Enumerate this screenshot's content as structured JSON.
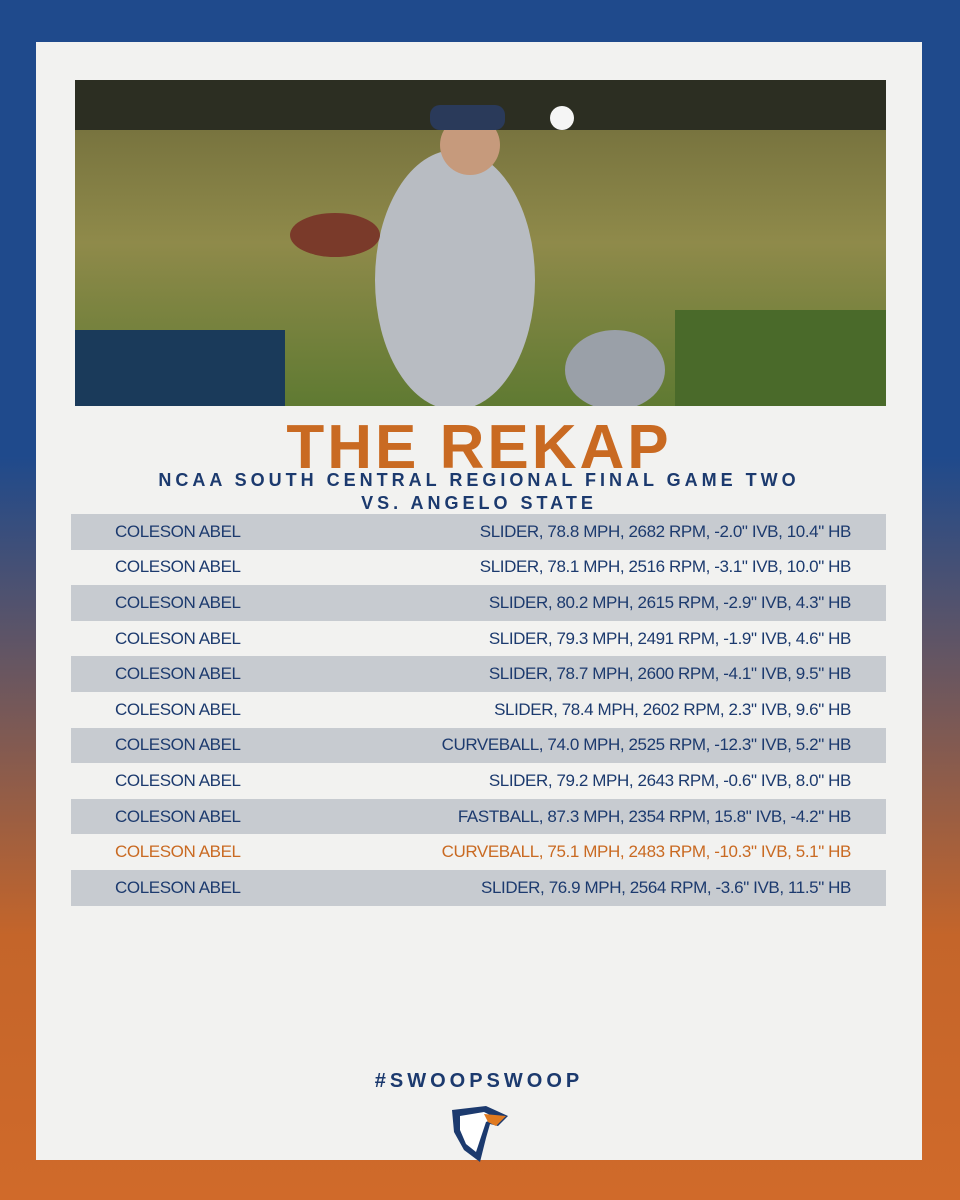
{
  "header": {
    "title": "THE REKAP",
    "subtitle_lines": [
      "NCAA SOUTH CENTRAL REGIONAL FINAL GAME TWO",
      "VS. ANGELO STATE"
    ]
  },
  "table": {
    "highlight_row": 9,
    "rows": [
      [
        "COLESON ABEL",
        "SLIDER, 78.8 MPH, 2682 RPM, -2.0\" IVB, 10.4\" HB"
      ],
      [
        "COLESON ABEL",
        "SLIDER, 78.1 MPH, 2516 RPM, -3.1\" IVB, 10.0\" HB"
      ],
      [
        "COLESON ABEL",
        "SLIDER, 80.2 MPH, 2615 RPM, -2.9\" IVB, 4.3\" HB"
      ],
      [
        "COLESON ABEL",
        "SLIDER, 79.3 MPH, 2491 RPM, -1.9\" IVB, 4.6\" HB"
      ],
      [
        "COLESON ABEL",
        "SLIDER, 78.7 MPH, 2600 RPM, -4.1\" IVB, 9.5\" HB"
      ],
      [
        "COLESON ABEL",
        "SLIDER, 78.4 MPH, 2602 RPM, 2.3\" IVB, 9.6\" HB"
      ],
      [
        "COLESON ABEL",
        "CURVEBALL, 74.0 MPH, 2525 RPM, -12.3\" IVB, 5.2\" HB"
      ],
      [
        "COLESON ABEL",
        "SLIDER, 79.2 MPH, 2643 RPM, -0.6\" IVB, 8.0\" HB"
      ],
      [
        "COLESON ABEL",
        "FASTBALL, 87.3 MPH, 2354 RPM, 15.8\" IVB, -4.2\" HB"
      ],
      [
        "COLESON ABEL",
        "CURVEBALL, 75.1 MPH, 2483 RPM, -10.3\" IVB, 5.1\" HB"
      ],
      [
        "COLESON ABEL",
        "SLIDER, 76.9 MPH, 2564 RPM, -3.6\" IVB, 11.5\" HB"
      ]
    ]
  },
  "footer": {
    "hashtag": "#SWOOPSWOOP"
  }
}
